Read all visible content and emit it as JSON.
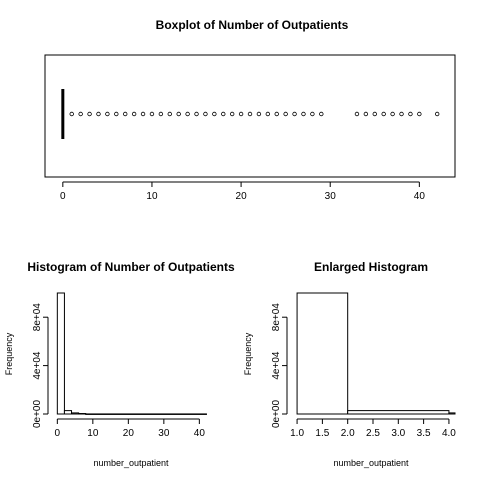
{
  "chart_data": [
    {
      "type": "boxplot",
      "title": "Boxplot of Number of Outpatients",
      "horizontal": true,
      "xlim": [
        -2,
        44
      ],
      "xticks": [
        0,
        10,
        20,
        30,
        40
      ],
      "box": {
        "min": 0,
        "q1": 0,
        "median": 0,
        "q3": 0,
        "max": 0
      },
      "outliers": [
        1,
        2,
        3,
        4,
        5,
        6,
        7,
        8,
        9,
        10,
        11,
        12,
        13,
        14,
        15,
        16,
        17,
        18,
        19,
        20,
        21,
        22,
        23,
        24,
        25,
        26,
        27,
        28,
        29,
        33,
        34,
        35,
        36,
        37,
        38,
        39,
        40,
        42
      ]
    },
    {
      "type": "histogram",
      "title": "Histogram of Number of Outpatients",
      "xlabel": "number_outpatient",
      "ylabel": "Frequency",
      "xlim": [
        -1.5,
        43
      ],
      "ylim": [
        0,
        100000
      ],
      "xticks": [
        0,
        10,
        20,
        30,
        40
      ],
      "yticks": [
        0,
        40000,
        80000
      ],
      "ytick_labels": [
        "0e+00",
        "4e+04",
        "8e+04"
      ],
      "bins": [
        {
          "from": 0,
          "to": 2,
          "count": 100000
        },
        {
          "from": 2,
          "to": 4,
          "count": 2800
        },
        {
          "from": 4,
          "to": 6,
          "count": 900
        },
        {
          "from": 6,
          "to": 8,
          "count": 400
        },
        {
          "from": 8,
          "to": 42,
          "count": 60
        }
      ]
    },
    {
      "type": "histogram",
      "title": "Enlarged Histogram",
      "xlabel": "number_outpatient",
      "ylabel": "Frequency",
      "xlim": [
        0.88,
        4.12
      ],
      "ylim": [
        0,
        100000
      ],
      "xticks": [
        1.0,
        1.5,
        2.0,
        2.5,
        3.0,
        3.5,
        4.0
      ],
      "xtick_labels": [
        "1.0",
        "1.5",
        "2.0",
        "2.5",
        "3.0",
        "3.5",
        "4.0"
      ],
      "yticks": [
        0,
        40000,
        80000
      ],
      "ytick_labels": [
        "0e+00",
        "4e+04",
        "8e+04"
      ],
      "bins": [
        {
          "from": 1,
          "to": 2,
          "count": 100000
        },
        {
          "from": 2,
          "to": 4,
          "count": 2800
        },
        {
          "from": 4,
          "to": 4.12,
          "count": 900
        }
      ]
    }
  ]
}
